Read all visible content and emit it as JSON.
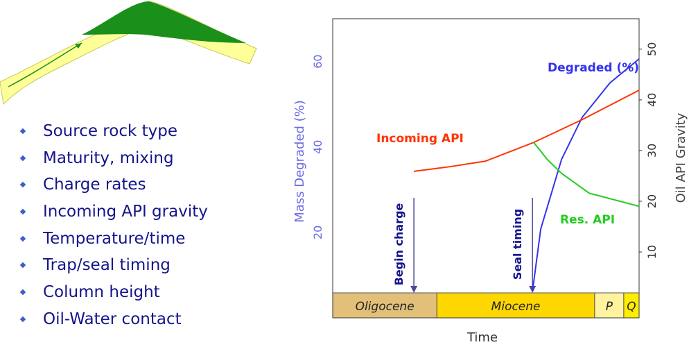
{
  "bullets": [
    "Source rock type",
    "Maturity, mixing",
    "Charge rates",
    "Incoming API gravity",
    "Temperature/time",
    "Trap/seal timing",
    "Column height",
    "Oil-Water contact"
  ],
  "chart_data": {
    "type": "line",
    "xlabel": "Time",
    "ylabel": "Mass Degraded (%)",
    "y2label": "Oil API Gravity",
    "xlim": [
      0,
      100
    ],
    "ylim": [
      0,
      70
    ],
    "yticks": [
      20,
      40,
      60
    ],
    "y2lim": [
      -3,
      56
    ],
    "y2ticks": [
      10,
      20,
      30,
      40,
      50
    ],
    "series": [
      {
        "name": "Degraded (%)",
        "color": "#3333ee",
        "x": [
          65.2,
          67.9,
          74.7,
          81.4,
          90.5,
          100
        ],
        "values": [
          6.2,
          20.8,
          37.1,
          46.9,
          55.0,
          60.6
        ]
      },
      {
        "name": "Incoming API",
        "color": "#ff3300",
        "axis": "y2",
        "x": [
          26.5,
          38.0,
          49.8,
          65.6,
          81.4,
          100
        ],
        "values": [
          25.9,
          26.8,
          27.9,
          31.6,
          36.1,
          41.9
        ]
      },
      {
        "name": "Res. API",
        "color": "#22cc22",
        "axis": "y2",
        "x": [
          65.6,
          70.1,
          74.7,
          83.7,
          100
        ],
        "values": [
          31.6,
          28.2,
          25.5,
          21.6,
          19.0
        ]
      }
    ],
    "events": [
      {
        "label": "Begin charge",
        "x": 26.5
      },
      {
        "label": "Seal timing",
        "x": 65.2
      }
    ],
    "periods": [
      {
        "name": "Oligocene",
        "start": 0,
        "end": 34,
        "color": "#e3c07a"
      },
      {
        "name": "Miocene",
        "start": 34,
        "end": 85.5,
        "color": "#ffd700"
      },
      {
        "name": "P",
        "start": 85.5,
        "end": 95,
        "color": "#fff3a0"
      },
      {
        "name": "Q",
        "start": 95,
        "end": 100,
        "color": "#ffee00"
      }
    ]
  }
}
